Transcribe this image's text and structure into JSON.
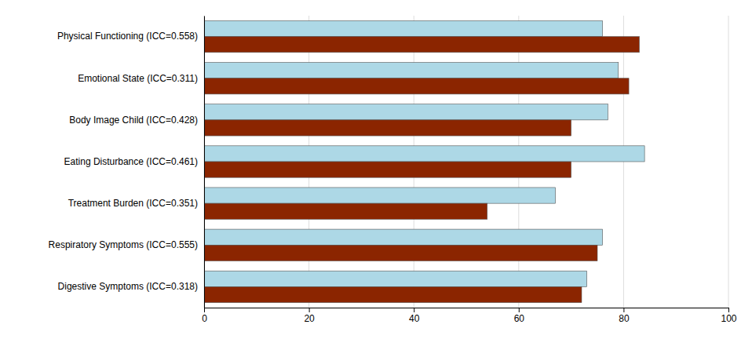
{
  "chart_data": {
    "type": "bar",
    "orientation": "horizontal",
    "categories": [
      "Physical Functioning (ICC=0.558)",
      "Emotional State (ICC=0.311)",
      "Body Image Child (ICC=0.428)",
      "Eating Disturbance (ICC=0.461)",
      "Treatment Burden (ICC=0.351)",
      "Respiratory Symptoms (ICC=0.555)",
      "Digestive Symptoms (ICC=0.318)"
    ],
    "series": [
      {
        "color": "#ADD8E6",
        "values": [
          76,
          79,
          77,
          84,
          67,
          76,
          73
        ]
      },
      {
        "color": "#8B2500",
        "values": [
          83,
          81,
          70,
          70,
          54,
          75,
          72
        ]
      }
    ],
    "xlim": [
      0,
      100
    ],
    "xticks": [
      0,
      20,
      40,
      60,
      80,
      100
    ],
    "grid": true
  }
}
